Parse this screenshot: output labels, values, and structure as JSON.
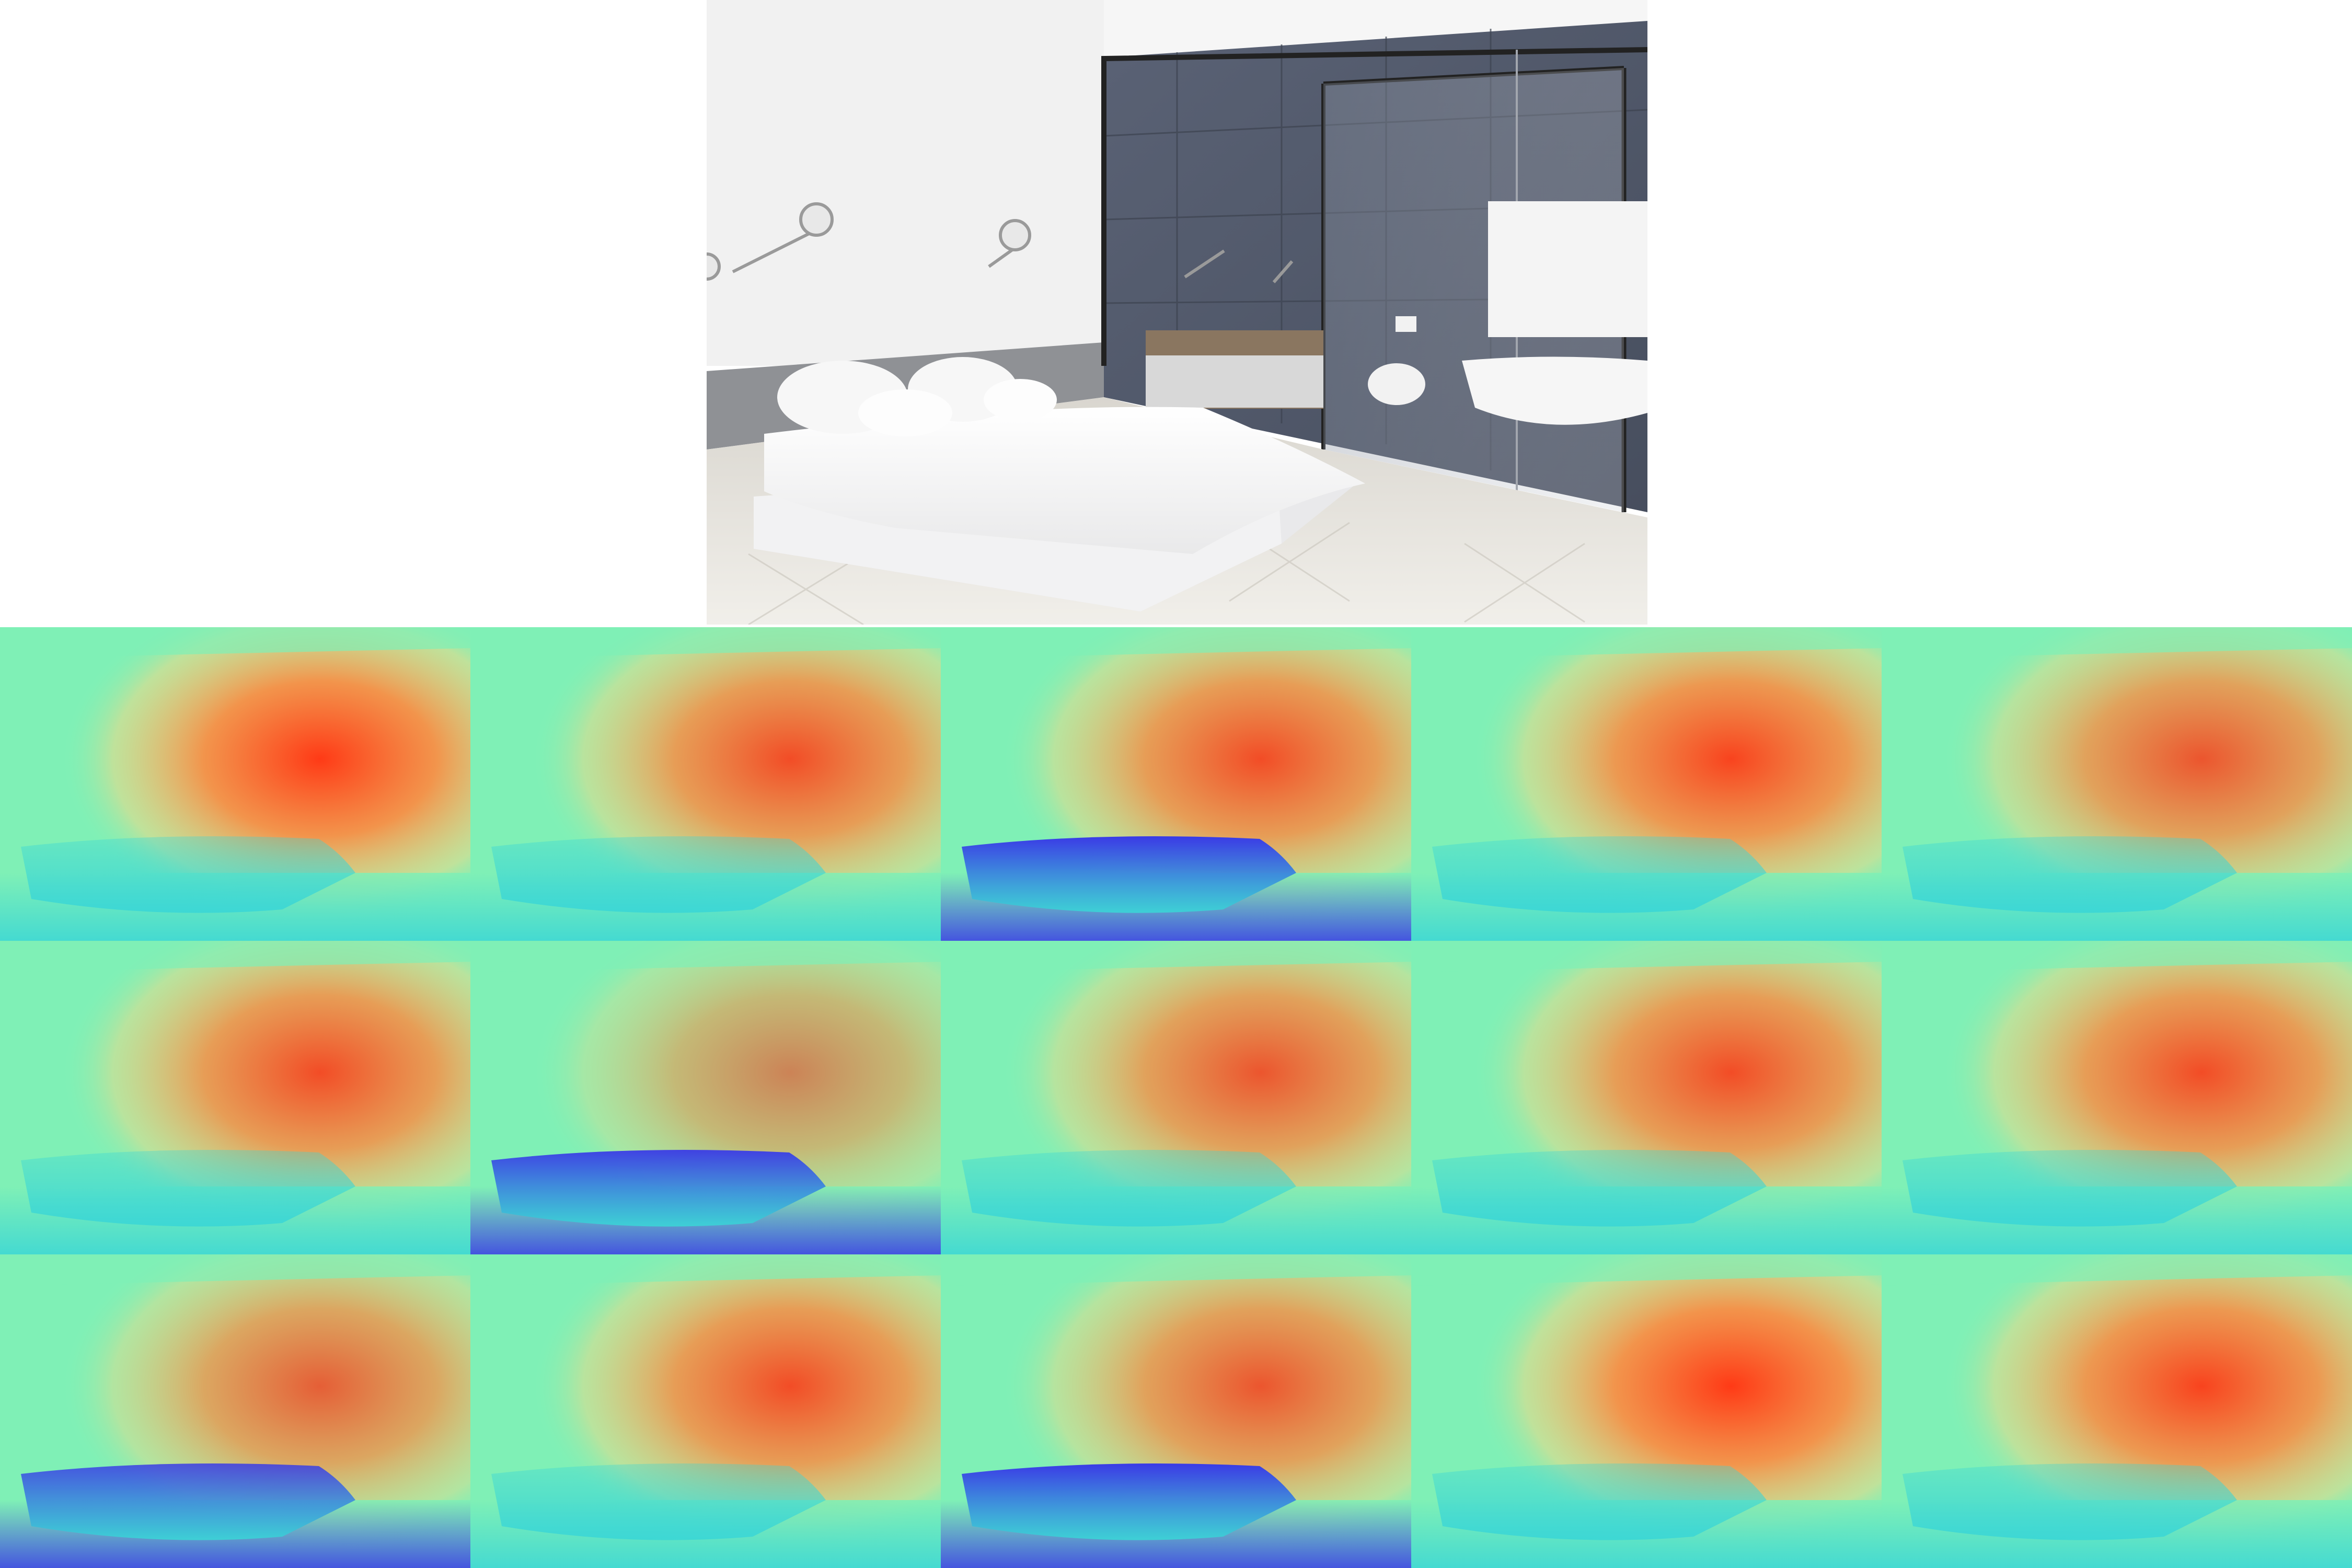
{
  "figure": {
    "source_image": {
      "subject": "bedroom-with-glass-bathroom"
    },
    "depth_grid": {
      "rows": 3,
      "columns": 5,
      "colormap": "rainbow",
      "colors": {
        "far": "#ff3a16",
        "mid_far": "#ff8a40",
        "mid": "#ffd480",
        "near": "#7ff0b6",
        "closer": "#3ad6d6",
        "closest": "#3a3ae6"
      },
      "maps": [
        {
          "id": "r1c1",
          "near_strength": 0.15,
          "far_strength": 1.0
        },
        {
          "id": "r1c2",
          "near_strength": 0.15,
          "far_strength": 0.9
        },
        {
          "id": "r1c3",
          "near_strength": 1.0,
          "far_strength": 0.9
        },
        {
          "id": "r1c4",
          "near_strength": 0.15,
          "far_strength": 0.95
        },
        {
          "id": "r1c5",
          "near_strength": 0.2,
          "far_strength": 0.85
        },
        {
          "id": "r2c1",
          "near_strength": 0.15,
          "far_strength": 0.9
        },
        {
          "id": "r2c2",
          "near_strength": 0.95,
          "far_strength": 0.6
        },
        {
          "id": "r2c3",
          "near_strength": 0.2,
          "far_strength": 0.85
        },
        {
          "id": "r2c4",
          "near_strength": 0.2,
          "far_strength": 0.9
        },
        {
          "id": "r2c5",
          "near_strength": 0.15,
          "far_strength": 0.9
        },
        {
          "id": "r3c1",
          "near_strength": 0.85,
          "far_strength": 0.8
        },
        {
          "id": "r3c2",
          "near_strength": 0.15,
          "far_strength": 0.9
        },
        {
          "id": "r3c3",
          "near_strength": 1.0,
          "far_strength": 0.85
        },
        {
          "id": "r3c4",
          "near_strength": 0.2,
          "far_strength": 1.0
        },
        {
          "id": "r3c5",
          "near_strength": 0.2,
          "far_strength": 0.95
        }
      ]
    }
  }
}
